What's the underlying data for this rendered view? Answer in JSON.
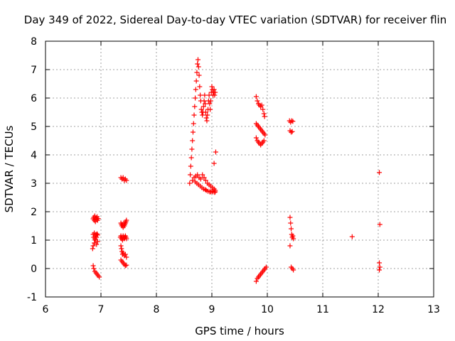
{
  "chart_data": {
    "type": "scatter",
    "title": "Day 349 of 2022, Sidereal Day-to-day VTEC variation (SDTVAR) for receiver flin",
    "xlabel": "GPS time / hours",
    "ylabel": "SDTVAR / TECUs",
    "xlim": [
      6,
      13
    ],
    "ylim": [
      -1,
      8
    ],
    "xticks": [
      "6",
      "7",
      "8",
      "9",
      "10",
      "11",
      "12",
      "13"
    ],
    "yticks": [
      "-1",
      "0",
      "1",
      "2",
      "3",
      "4",
      "5",
      "6",
      "7",
      "8"
    ],
    "grid": true,
    "marker": "+",
    "color": "#ff0000",
    "series": [
      {
        "name": "SDTVAR",
        "x": [
          6.86,
          6.87,
          6.88,
          6.89,
          6.9,
          6.91,
          6.92,
          6.93,
          6.94,
          6.95,
          6.86,
          6.87,
          6.88,
          6.89,
          6.9,
          6.91,
          6.92,
          6.93,
          6.94,
          6.85,
          6.86,
          6.88,
          6.9,
          6.92,
          6.94,
          6.86,
          6.87,
          6.89,
          6.91,
          6.93,
          6.95,
          6.97,
          7.36,
          7.38,
          7.4,
          7.42,
          7.44,
          7.46,
          7.36,
          7.37,
          7.38,
          7.39,
          7.4,
          7.41,
          7.42,
          7.43,
          7.44,
          7.45,
          7.46,
          7.35,
          7.36,
          7.37,
          7.38,
          7.39,
          7.4,
          7.41,
          7.42,
          7.43,
          7.44,
          7.45,
          7.46,
          7.36,
          7.37,
          7.38,
          7.39,
          7.4,
          7.42,
          7.44,
          7.46,
          7.36,
          7.38,
          7.4,
          7.42,
          7.44,
          7.46,
          8.6,
          8.61,
          8.62,
          8.63,
          8.64,
          8.65,
          8.66,
          8.67,
          8.68,
          8.69,
          8.7,
          8.71,
          8.72,
          8.73,
          8.74,
          8.75,
          8.76,
          8.77,
          8.78,
          8.79,
          8.8,
          8.81,
          8.82,
          8.83,
          8.84,
          8.85,
          8.86,
          8.87,
          8.88,
          8.89,
          8.9,
          8.91,
          8.92,
          8.93,
          8.94,
          8.95,
          8.96,
          8.97,
          8.98,
          8.99,
          9.0,
          9.01,
          9.02,
          9.03,
          9.04,
          9.05,
          9.06,
          8.65,
          8.68,
          8.71,
          8.74,
          8.77,
          8.8,
          8.83,
          8.86,
          8.89,
          8.92,
          8.95,
          8.98,
          9.01,
          9.04,
          9.06,
          8.7,
          8.73,
          8.76,
          8.79,
          8.82,
          8.85,
          8.88,
          8.9,
          8.93,
          8.96,
          8.98,
          9.0,
          9.02,
          9.05,
          9.06,
          9.04,
          9.07,
          9.8,
          9.82,
          9.84,
          9.86,
          9.88,
          9.9,
          9.92,
          9.94,
          9.95,
          9.8,
          9.82,
          9.84,
          9.86,
          9.88,
          9.9,
          9.92,
          9.94,
          9.96,
          9.8,
          9.82,
          9.84,
          9.86,
          9.88,
          9.9,
          9.92,
          9.94,
          9.8,
          9.82,
          9.84,
          9.86,
          9.88,
          9.9,
          9.92,
          9.94,
          9.96,
          9.98,
          10.4,
          10.42,
          10.44,
          10.46,
          10.41,
          10.43,
          10.45,
          10.41,
          10.42,
          10.43,
          10.44,
          10.45,
          10.46,
          10.47,
          10.41,
          10.43,
          10.45,
          10.47,
          11.53,
          12.02,
          12.03,
          12.02,
          12.03,
          12.02
        ],
        "y": [
          1.75,
          1.8,
          1.7,
          1.85,
          1.65,
          1.78,
          1.72,
          1.82,
          1.7,
          1.76,
          1.2,
          1.1,
          1.25,
          1.05,
          1.15,
          1.2,
          1.1,
          1.22,
          1.18,
          0.7,
          0.8,
          0.9,
          1.0,
          0.85,
          0.95,
          0.1,
          0.0,
          -0.1,
          -0.15,
          -0.2,
          -0.25,
          -0.3,
          3.2,
          3.15,
          3.2,
          3.1,
          3.15,
          3.1,
          1.6,
          1.55,
          1.5,
          1.55,
          1.45,
          1.6,
          1.5,
          1.55,
          1.6,
          1.65,
          1.7,
          1.1,
          1.15,
          1.05,
          1.1,
          1.0,
          1.15,
          1.1,
          1.05,
          1.1,
          1.15,
          1.1,
          1.05,
          0.8,
          0.7,
          0.6,
          0.5,
          0.55,
          0.45,
          0.5,
          0.4,
          0.3,
          0.25,
          0.2,
          0.15,
          0.1,
          0.12,
          3.0,
          3.3,
          3.6,
          3.9,
          4.2,
          4.5,
          4.8,
          5.1,
          5.4,
          5.7,
          6.0,
          6.3,
          6.6,
          6.9,
          7.2,
          7.35,
          7.1,
          6.8,
          6.4,
          6.1,
          5.9,
          5.6,
          5.5,
          5.4,
          5.5,
          5.7,
          5.9,
          6.1,
          5.8,
          5.5,
          5.3,
          5.2,
          5.4,
          5.6,
          5.9,
          6.1,
          5.8,
          5.6,
          5.9,
          6.2,
          6.4,
          6.3,
          6.1,
          6.2,
          6.3,
          6.1,
          6.2,
          3.1,
          3.2,
          3.25,
          3.3,
          3.2,
          3.15,
          3.3,
          3.2,
          3.1,
          3.0,
          2.95,
          2.9,
          2.85,
          2.8,
          2.75,
          3.05,
          3.0,
          2.95,
          2.9,
          2.85,
          2.8,
          2.78,
          2.75,
          2.72,
          2.7,
          2.7,
          2.72,
          2.7,
          2.68,
          2.7,
          3.7,
          4.1,
          6.05,
          5.9,
          5.8,
          5.75,
          5.7,
          5.75,
          5.6,
          5.45,
          5.35,
          5.1,
          5.05,
          5.0,
          4.95,
          4.9,
          4.85,
          4.8,
          4.75,
          4.7,
          4.6,
          4.5,
          4.45,
          4.4,
          4.35,
          4.4,
          4.45,
          4.5,
          -0.45,
          -0.35,
          -0.3,
          -0.25,
          -0.2,
          -0.15,
          -0.1,
          -0.05,
          0.0,
          0.05,
          5.2,
          5.15,
          5.2,
          5.18,
          4.85,
          4.8,
          4.82,
          1.8,
          1.6,
          1.4,
          1.2,
          1.1,
          1.15,
          1.05,
          0.8,
          0.05,
          0.0,
          -0.05,
          1.12,
          3.38,
          1.55,
          0.2,
          0.05,
          -0.05
        ]
      }
    ]
  }
}
